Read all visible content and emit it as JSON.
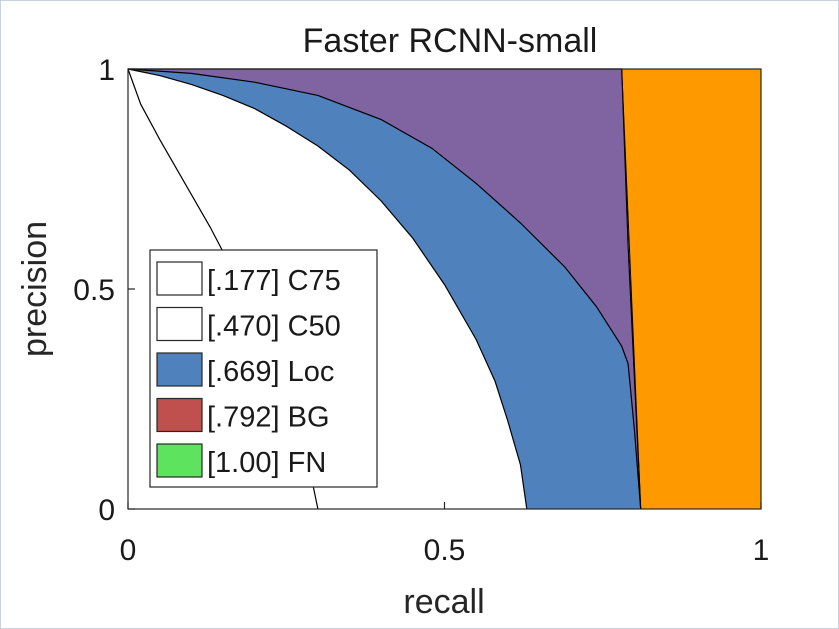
{
  "chart_data": {
    "type": "area",
    "title": "Faster RCNN-small",
    "xlabel": "recall",
    "ylabel": "precision",
    "xlim": [
      0,
      1
    ],
    "ylim": [
      0,
      1
    ],
    "x_ticks": [
      "0",
      "0.5",
      "1"
    ],
    "y_ticks": [
      "0",
      "0.5",
      "1"
    ],
    "grid": false,
    "legend_position": "bottom-left",
    "series": [
      {
        "key": "C75",
        "legend": "[.177] C75",
        "color": "#ffffff",
        "points": [
          [
            0,
            1
          ],
          [
            0.02,
            0.92
          ],
          [
            0.05,
            0.84
          ],
          [
            0.09,
            0.74
          ],
          [
            0.13,
            0.64
          ],
          [
            0.17,
            0.53
          ],
          [
            0.21,
            0.4
          ],
          [
            0.25,
            0.27
          ],
          [
            0.28,
            0.14
          ],
          [
            0.3,
            0
          ]
        ]
      },
      {
        "key": "C50",
        "legend": "[.470] C50",
        "color": "#ffffff",
        "points": [
          [
            0,
            1
          ],
          [
            0.05,
            0.985
          ],
          [
            0.1,
            0.965
          ],
          [
            0.15,
            0.94
          ],
          [
            0.2,
            0.91
          ],
          [
            0.25,
            0.87
          ],
          [
            0.3,
            0.825
          ],
          [
            0.35,
            0.77
          ],
          [
            0.4,
            0.7
          ],
          [
            0.45,
            0.615
          ],
          [
            0.5,
            0.51
          ],
          [
            0.55,
            0.385
          ],
          [
            0.58,
            0.29
          ],
          [
            0.6,
            0.2
          ],
          [
            0.62,
            0.1
          ],
          [
            0.63,
            0
          ]
        ]
      },
      {
        "key": "Loc",
        "legend": "[.669] Loc",
        "color": "#4f81bd",
        "points": [
          [
            0,
            1
          ],
          [
            0.1,
            0.99
          ],
          [
            0.2,
            0.97
          ],
          [
            0.3,
            0.94
          ],
          [
            0.4,
            0.885
          ],
          [
            0.48,
            0.82
          ],
          [
            0.55,
            0.74
          ],
          [
            0.62,
            0.65
          ],
          [
            0.69,
            0.55
          ],
          [
            0.74,
            0.46
          ],
          [
            0.78,
            0.37
          ],
          [
            0.79,
            0.33
          ],
          [
            0.8,
            0.18
          ],
          [
            0.81,
            0
          ]
        ]
      },
      {
        "key": "Sim",
        "legend": "",
        "color": "#8064a2",
        "points": [
          [
            0,
            1
          ],
          [
            0.78,
            1
          ],
          [
            0.79,
            0.6
          ],
          [
            0.8,
            0.3
          ],
          [
            0.81,
            0
          ]
        ]
      },
      {
        "key": "Oth",
        "legend": "",
        "color": "#ff9900",
        "points": [
          [
            0.78,
            1
          ],
          [
            1,
            1
          ],
          [
            1,
            0
          ],
          [
            0.81,
            0
          ]
        ]
      },
      {
        "key": "BG",
        "legend": "[.792] BG",
        "color": "#c0504d",
        "points": []
      },
      {
        "key": "FN",
        "legend": "[1.00] FN",
        "color": "#5de35d",
        "points": []
      }
    ]
  }
}
